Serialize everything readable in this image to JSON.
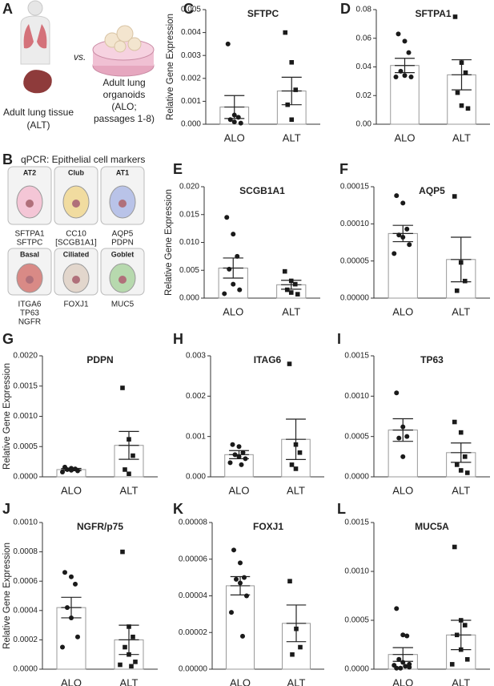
{
  "figure": {
    "panel_a": {
      "label": "A",
      "vs": "vs.",
      "tissue": [
        "Adult lung tissue",
        "(ALT)"
      ],
      "organoid": [
        "Adult lung",
        "organoids",
        "(ALO;",
        "passages 1-8)"
      ]
    },
    "panel_b": {
      "label": "B",
      "title": "qPCR: Epithelial cell markers",
      "cells": [
        {
          "name": "AT2",
          "markers": [
            "SFTPA1",
            "SFTPC"
          ]
        },
        {
          "name": "Club",
          "markers": [
            "CC10",
            "[SCGB1A1]"
          ]
        },
        {
          "name": "AT1",
          "markers": [
            "AQP5",
            "PDPN"
          ]
        },
        {
          "name": "Basal",
          "markers": [
            "ITGA6",
            "TP63",
            "NGFR"
          ]
        },
        {
          "name": "Ciliated",
          "markers": [
            "FOXJ1"
          ]
        },
        {
          "name": "Goblet",
          "markers": [
            "MUC5"
          ]
        }
      ]
    }
  },
  "chart_data": [
    {
      "type": "bar",
      "panel": "C",
      "title": "SFTPC",
      "ylabel": "Relative Gene Expression",
      "categories": [
        "ALO",
        "ALT"
      ],
      "values": [
        0.00075,
        0.00145
      ],
      "errors": [
        0.0005,
        0.0006
      ],
      "points": [
        [
          0.0035,
          0.0004,
          0.0003,
          0.0002,
          0.0001,
          5e-05
        ],
        [
          0.004,
          0.0027,
          0.0015,
          0.00085,
          0.0002
        ]
      ],
      "markers": [
        "circle",
        "square"
      ],
      "color": "#ffffff",
      "point_color": "#1a1a1a",
      "ylim": [
        0,
        0.005
      ],
      "yticks": [
        {
          "value": 0,
          "label": "0.000"
        },
        0.001,
        0.002,
        0.003,
        0.004,
        0.005
      ]
    },
    {
      "type": "bar",
      "panel": "D",
      "title": "SFTPA1",
      "categories": [
        "ALO",
        "ALT"
      ],
      "values": [
        0.041,
        0.0345
      ],
      "errors": [
        0.005,
        0.0105
      ],
      "points": [
        [
          0.063,
          0.058,
          0.05,
          0.037,
          0.034,
          0.033,
          0.033
        ],
        [
          0.075,
          0.043,
          0.036,
          0.022,
          0.013,
          0.011
        ]
      ],
      "markers": [
        "circle",
        "square"
      ],
      "color": "#ffffff",
      "point_color": "#1a1a1a",
      "ylim": [
        0,
        0.08
      ],
      "yticks": [
        {
          "value": 0,
          "label": "0.00"
        },
        0.02,
        0.04,
        0.06,
        0.08
      ]
    },
    {
      "type": "bar",
      "panel": "E",
      "title": "SCGB1A1",
      "ylabel": "Relative Gene Expression",
      "categories": [
        "ALO",
        "ALT"
      ],
      "values": [
        0.0054,
        0.0024
      ],
      "errors": [
        0.0018,
        0.0008
      ],
      "points": [
        [
          0.0145,
          0.0115,
          0.0075,
          0.0052,
          0.0025,
          0.0015,
          0.0008
        ],
        [
          0.0048,
          0.0031,
          0.0025,
          0.0015,
          0.001,
          0.0007
        ]
      ],
      "markers": [
        "circle",
        "square"
      ],
      "color": "#ffffff",
      "point_color": "#1a1a1a",
      "ylim": [
        0,
        0.02
      ],
      "yticks": [
        {
          "value": 0,
          "label": "0.000"
        },
        0.005,
        {
          "value": 0.01,
          "label": "0.010"
        },
        0.015,
        {
          "value": 0.02,
          "label": "0.020"
        }
      ]
    },
    {
      "type": "bar",
      "panel": "F",
      "title": "AQP5",
      "categories": [
        "ALO",
        "ALT"
      ],
      "values": [
        8.7e-05,
        5.2e-05
      ],
      "errors": [
        1.1e-05,
        3e-05
      ],
      "points": [
        [
          0.000138,
          0.000128,
          9.3e-05,
          8.5e-05,
          8.2e-05,
          7.2e-05,
          6e-05
        ],
        [
          0.000137,
          4.8e-05,
          2.3e-05,
          1e-05
        ]
      ],
      "markers": [
        "circle",
        "square"
      ],
      "color": "#ffffff",
      "point_color": "#1a1a1a",
      "ylim": [
        0,
        0.00015
      ],
      "yticks": [
        {
          "value": 0,
          "label": "0.00000"
        },
        5e-05,
        {
          "value": 0.0001,
          "label": "0.00010"
        },
        0.00015
      ]
    },
    {
      "type": "bar",
      "panel": "G",
      "title": "PDPN",
      "ylabel": "Relative Gene Expression",
      "categories": [
        "ALO",
        "ALT"
      ],
      "values": [
        0.00012,
        0.00052
      ],
      "errors": [
        2e-05,
        0.00023
      ],
      "points": [
        [
          0.00016,
          0.00014,
          0.00013,
          0.00012,
          0.00011,
          0.0001,
          8e-05
        ],
        [
          0.00147,
          0.00062,
          0.00035,
          0.00012,
          5e-05
        ]
      ],
      "markers": [
        "circle",
        "square"
      ],
      "color": "#ffffff",
      "point_color": "#1a1a1a",
      "ylim": [
        0,
        0.002
      ],
      "yticks": [
        {
          "value": 0,
          "label": "0.0000"
        },
        0.0005,
        {
          "value": 0.001,
          "label": "0.0010"
        },
        0.0015,
        {
          "value": 0.002,
          "label": "0.0020"
        }
      ]
    },
    {
      "type": "bar",
      "panel": "H",
      "title": "ITAG6",
      "categories": [
        "ALO",
        "ALT"
      ],
      "values": [
        0.00055,
        0.00093
      ],
      "errors": [
        0.0001,
        0.0005
      ],
      "points": [
        [
          0.0008,
          0.00075,
          0.0006,
          0.00055,
          0.0005,
          0.00045,
          0.00035,
          0.0003
        ],
        [
          0.0028,
          0.0008,
          0.0006,
          0.0003,
          0.0002
        ]
      ],
      "markers": [
        "circle",
        "square"
      ],
      "color": "#ffffff",
      "point_color": "#1a1a1a",
      "ylim": [
        0,
        0.003
      ],
      "yticks": [
        {
          "value": 0,
          "label": "0.000"
        },
        0.001,
        0.002,
        0.003
      ]
    },
    {
      "type": "bar",
      "panel": "I",
      "title": "TP63",
      "categories": [
        "ALO",
        "ALT"
      ],
      "values": [
        0.00058,
        0.0003
      ],
      "errors": [
        0.00014,
        0.00012
      ],
      "points": [
        [
          0.00104,
          0.00062,
          0.0005,
          0.00048,
          0.00025
        ],
        [
          0.00068,
          0.00055,
          0.00025,
          0.00015,
          8e-05,
          5e-05
        ]
      ],
      "markers": [
        "circle",
        "square"
      ],
      "color": "#ffffff",
      "point_color": "#1a1a1a",
      "ylim": [
        0,
        0.0015
      ],
      "yticks": [
        {
          "value": 0,
          "label": "0.0000"
        },
        0.0005,
        {
          "value": 0.001,
          "label": "0.0010"
        },
        0.0015
      ]
    },
    {
      "type": "bar",
      "panel": "J",
      "title": "NGFR/p75",
      "ylabel": "Relative Gene Expression",
      "categories": [
        "ALO",
        "ALT"
      ],
      "values": [
        0.00042,
        0.0002
      ],
      "errors": [
        7e-05,
        0.0001
      ],
      "points": [
        [
          0.00066,
          0.00063,
          0.00058,
          0.00042,
          0.00035,
          0.00022,
          0.00015
        ],
        [
          0.0008,
          0.00029,
          0.00022,
          0.00015,
          0.0001,
          5e-05,
          3e-05,
          2e-05
        ]
      ],
      "markers": [
        "circle",
        "square"
      ],
      "color": "#ffffff",
      "point_color": "#1a1a1a",
      "ylim": [
        0,
        0.001
      ],
      "yticks": [
        {
          "value": 0,
          "label": "0.0000"
        },
        0.0002,
        0.0004,
        0.0006,
        0.0008,
        {
          "value": 0.001,
          "label": "0.0010"
        }
      ]
    },
    {
      "type": "bar",
      "panel": "K",
      "title": "FOXJ1",
      "categories": [
        "ALO",
        "ALT"
      ],
      "values": [
        4.55e-05,
        2.5e-05
      ],
      "errors": [
        5e-06,
        1e-05
      ],
      "points": [
        [
          6.5e-05,
          5.8e-05,
          5e-05,
          4.9e-05,
          4.7e-05,
          4e-05,
          3.1e-05,
          1.8e-05
        ],
        [
          4.8e-05,
          2.2e-05,
          1.2e-05,
          8e-06
        ]
      ],
      "markers": [
        "circle",
        "square"
      ],
      "color": "#ffffff",
      "point_color": "#1a1a1a",
      "ylim": [
        0,
        8e-05
      ],
      "yticks": [
        {
          "value": 0,
          "label": "0.00000"
        },
        2e-05,
        4e-05,
        6e-05,
        8e-05
      ]
    },
    {
      "type": "bar",
      "panel": "L",
      "title": "MUC5A",
      "categories": [
        "ALO",
        "ALT"
      ],
      "values": [
        0.00015,
        0.00035
      ],
      "errors": [
        7e-05,
        0.00015
      ],
      "points": [
        [
          0.00062,
          0.00035,
          0.00034,
          0.0001,
          7e-05,
          5e-05,
          4e-05,
          3e-05,
          2e-05,
          1e-05,
          1e-05
        ],
        [
          0.00125,
          0.0005,
          0.00045,
          0.00035,
          0.0002,
          0.0001,
          5e-05
        ]
      ],
      "markers": [
        "circle",
        "square"
      ],
      "color": "#ffffff",
      "point_color": "#1a1a1a",
      "ylim": [
        0,
        0.0015
      ],
      "yticks": [
        {
          "value": 0,
          "label": "0.0000"
        },
        0.0005,
        {
          "value": 0.001,
          "label": "0.0010"
        },
        0.0015
      ]
    }
  ]
}
